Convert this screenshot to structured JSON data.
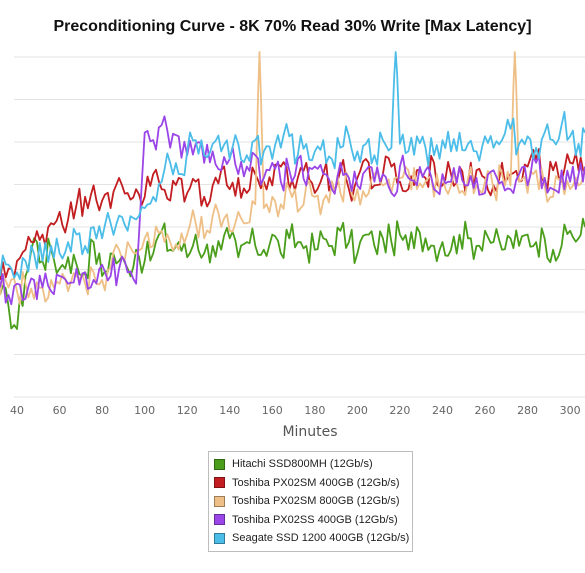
{
  "chart_data": {
    "type": "line",
    "title": "Preconditioning Curve - 8K 70% Read 30% Write [Max Latency]",
    "xlabel": "Minutes",
    "ylabel": "",
    "x_ticks": [
      40,
      60,
      80,
      100,
      120,
      140,
      160,
      180,
      200,
      220,
      240,
      260,
      280,
      300
    ],
    "xlim": [
      32,
      307
    ],
    "y_range_unlabeled": [
      0,
      9
    ],
    "grid": "horizontal",
    "legend_position": "bottom",
    "series": [
      {
        "name": "Hitachi SSD800MH (12Gb/s)",
        "color": "#4a9e1b",
        "x": [
          32,
          36,
          40,
          44,
          48,
          52,
          56,
          60,
          64,
          68,
          72,
          76,
          80,
          84,
          88,
          92,
          96,
          100,
          104,
          108,
          112,
          116,
          120,
          124,
          128,
          132,
          136,
          140,
          144,
          148,
          152,
          156,
          160,
          164,
          168,
          172,
          176,
          180,
          184,
          188,
          192,
          196,
          200,
          204,
          208,
          212,
          216,
          220,
          224,
          228,
          232,
          236,
          240,
          244,
          248,
          252,
          256,
          260,
          264,
          268,
          272,
          276,
          280,
          284,
          288,
          292,
          296,
          300,
          304,
          307
        ],
        "values": [
          2.7,
          2.4,
          1.8,
          3.2,
          4.2,
          3.6,
          3.9,
          3.4,
          3.7,
          3.5,
          3.3,
          4.1,
          3.2,
          3.8,
          3.6,
          3.4,
          3.9,
          3.6,
          3.8,
          4.4,
          3.9,
          4.1,
          3.7,
          4.3,
          3.8,
          4.0,
          3.9,
          4.2,
          3.7,
          4.1,
          4.0,
          3.9,
          4.3,
          3.8,
          4.2,
          4.1,
          4.0,
          3.9,
          4.2,
          4.0,
          4.4,
          4.1,
          3.8,
          4.3,
          4.0,
          4.2,
          4.1,
          4.3,
          3.9,
          4.5,
          4.2,
          4.0,
          4.1,
          3.9,
          4.3,
          4.2,
          4.0,
          4.4,
          4.1,
          3.9,
          4.2,
          4.0,
          4.3,
          4.1,
          4.2,
          3.9,
          4.0,
          4.4,
          4.2,
          4.5
        ]
      },
      {
        "name": "Toshiba PX02SM 400GB (12Gb/s)",
        "color": "#c21d20",
        "x": [
          32,
          36,
          40,
          44,
          48,
          52,
          56,
          60,
          64,
          68,
          72,
          76,
          80,
          84,
          88,
          92,
          96,
          100,
          104,
          108,
          112,
          116,
          120,
          124,
          128,
          132,
          136,
          140,
          144,
          148,
          152,
          156,
          160,
          164,
          168,
          172,
          176,
          180,
          184,
          188,
          192,
          196,
          200,
          204,
          208,
          212,
          216,
          220,
          224,
          228,
          232,
          236,
          240,
          244,
          248,
          252,
          256,
          260,
          264,
          268,
          272,
          276,
          280,
          284,
          288,
          292,
          296,
          300,
          304,
          307
        ],
        "values": [
          3.1,
          3.4,
          3.6,
          3.9,
          4.1,
          4.3,
          4.6,
          4.9,
          4.7,
          5.1,
          5.3,
          5.6,
          5.2,
          5.0,
          5.8,
          5.4,
          5.5,
          5.3,
          5.9,
          5.5,
          5.2,
          5.8,
          5.4,
          5.7,
          5.3,
          5.6,
          6.0,
          5.5,
          5.8,
          5.4,
          5.9,
          5.7,
          5.6,
          6.1,
          5.5,
          5.8,
          6.2,
          5.4,
          5.9,
          5.7,
          6.0,
          5.5,
          5.8,
          6.3,
          5.6,
          5.9,
          6.1,
          5.7,
          5.5,
          6.0,
          5.8,
          6.2,
          5.6,
          5.9,
          6.1,
          5.7,
          6.0,
          5.8,
          5.6,
          6.2,
          5.9,
          5.7,
          6.1,
          6.3,
          5.8,
          6.0,
          5.7,
          6.2,
          6.0,
          5.9
        ]
      },
      {
        "name": "Toshiba PX02SM 800GB (12Gb/s)",
        "color": "#eec087",
        "x": [
          32,
          36,
          40,
          44,
          48,
          52,
          56,
          60,
          64,
          68,
          72,
          76,
          80,
          84,
          88,
          92,
          96,
          100,
          104,
          108,
          112,
          116,
          120,
          124,
          128,
          132,
          136,
          140,
          144,
          148,
          152,
          154,
          156,
          160,
          164,
          168,
          172,
          176,
          180,
          184,
          188,
          192,
          196,
          200,
          204,
          208,
          212,
          216,
          220,
          224,
          228,
          232,
          236,
          240,
          244,
          248,
          252,
          256,
          260,
          264,
          268,
          272,
          274,
          276,
          280,
          284,
          288,
          292,
          296,
          300,
          304,
          307
        ],
        "values": [
          2.7,
          2.9,
          2.8,
          3.0,
          2.6,
          2.9,
          3.1,
          3.0,
          2.8,
          3.2,
          3.0,
          3.3,
          3.1,
          3.4,
          3.9,
          4.1,
          3.8,
          4.2,
          4.0,
          4.4,
          4.1,
          3.9,
          4.3,
          4.6,
          4.2,
          4.8,
          4.5,
          4.4,
          4.9,
          4.6,
          5.1,
          9.5,
          5.0,
          5.3,
          5.1,
          5.5,
          4.9,
          5.6,
          5.3,
          5.2,
          5.7,
          5.4,
          5.8,
          5.5,
          5.3,
          5.9,
          5.6,
          5.4,
          5.8,
          6.0,
          5.5,
          5.7,
          5.3,
          5.9,
          5.6,
          5.4,
          5.8,
          5.6,
          5.7,
          5.5,
          5.9,
          5.6,
          9.5,
          5.7,
          5.4,
          6.0,
          5.6,
          5.3,
          5.8,
          5.5,
          5.6,
          6.1
        ]
      },
      {
        "name": "Toshiba PX02SS 400GB (12Gb/s)",
        "color": "#9a45e8",
        "x": [
          32,
          36,
          40,
          44,
          48,
          52,
          56,
          60,
          64,
          68,
          72,
          76,
          80,
          84,
          88,
          92,
          96,
          100,
          104,
          108,
          112,
          116,
          120,
          124,
          128,
          132,
          136,
          140,
          144,
          148,
          152,
          156,
          160,
          164,
          168,
          172,
          176,
          180,
          184,
          188,
          192,
          196,
          200,
          204,
          208,
          212,
          216,
          220,
          224,
          228,
          232,
          236,
          240,
          244,
          248,
          252,
          256,
          260,
          264,
          268,
          272,
          276,
          280,
          284,
          288,
          292,
          296,
          300,
          304,
          307
        ],
        "values": [
          2.9,
          2.7,
          3.0,
          2.6,
          3.1,
          2.9,
          2.8,
          3.2,
          3.0,
          3.4,
          3.3,
          3.1,
          3.5,
          3.2,
          3.4,
          3.3,
          3.0,
          7.0,
          6.8,
          7.2,
          6.6,
          6.9,
          6.4,
          6.7,
          6.2,
          6.5,
          6.0,
          6.3,
          5.9,
          6.1,
          6.4,
          5.8,
          6.2,
          5.7,
          6.0,
          6.3,
          5.6,
          6.1,
          5.9,
          5.5,
          6.2,
          5.8,
          5.6,
          6.0,
          5.7,
          5.9,
          5.4,
          6.1,
          5.8,
          5.6,
          6.0,
          5.5,
          5.9,
          5.7,
          6.1,
          5.6,
          5.8,
          5.4,
          6.0,
          5.7,
          5.5,
          5.9,
          5.6,
          6.2,
          5.8,
          5.5,
          6.0,
          5.7,
          5.9,
          6.1
        ]
      },
      {
        "name": "Seagate SSD 1200 400GB (12Gb/s)",
        "color": "#4bbde8",
        "x": [
          32,
          36,
          40,
          44,
          48,
          52,
          56,
          60,
          64,
          68,
          72,
          76,
          80,
          84,
          88,
          92,
          96,
          100,
          104,
          108,
          112,
          116,
          120,
          124,
          128,
          132,
          136,
          140,
          144,
          148,
          152,
          156,
          160,
          164,
          168,
          172,
          176,
          180,
          184,
          188,
          192,
          196,
          200,
          204,
          208,
          212,
          216,
          218,
          220,
          224,
          228,
          232,
          236,
          240,
          244,
          248,
          252,
          256,
          260,
          264,
          268,
          272,
          276,
          280,
          284,
          288,
          292,
          296,
          300,
          304,
          307
        ],
        "values": [
          3.2,
          3.5,
          3.3,
          3.6,
          3.8,
          3.6,
          4.0,
          3.8,
          4.1,
          4.3,
          4.0,
          4.5,
          4.2,
          4.6,
          4.8,
          4.4,
          4.7,
          5.0,
          5.3,
          5.7,
          6.2,
          5.9,
          6.5,
          6.8,
          6.4,
          6.7,
          6.5,
          6.3,
          6.7,
          6.4,
          6.8,
          6.5,
          6.3,
          6.6,
          6.9,
          6.4,
          6.7,
          6.5,
          6.8,
          6.3,
          6.6,
          6.9,
          6.5,
          6.7,
          6.4,
          6.8,
          6.6,
          9.5,
          6.7,
          6.5,
          6.9,
          6.6,
          6.4,
          6.8,
          6.5,
          7.0,
          6.7,
          6.5,
          6.9,
          6.6,
          6.8,
          7.1,
          6.7,
          6.9,
          6.6,
          7.0,
          6.8,
          7.2,
          6.9,
          6.7,
          7.0
        ]
      }
    ]
  }
}
